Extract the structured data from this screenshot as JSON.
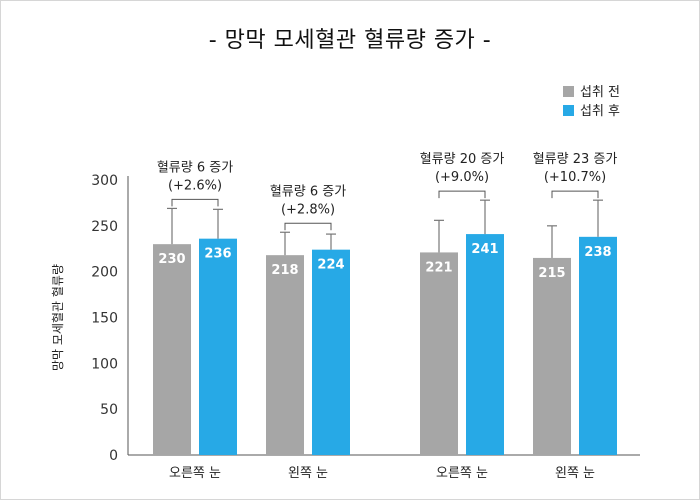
{
  "title": "- 망막 모세혈관 혈류량 증가 -",
  "chart_data": {
    "type": "bar",
    "title": "- 망막 모세혈관 혈류량 증가 -",
    "ylabel": "망막 모세혈관 혈류량",
    "xlabel": "",
    "ylim": [
      0,
      300
    ],
    "yticks": [
      0,
      50,
      100,
      150,
      200,
      250,
      300
    ],
    "categories": [
      "오른쪽 눈",
      "왼쪽 눈",
      "오른쪽 눈",
      "왼쪽 눈"
    ],
    "series": [
      {
        "name": "섭취 전",
        "color": "#a6a6a6",
        "values": [
          230,
          218,
          221,
          215
        ],
        "error_top": [
          269,
          243,
          256,
          250
        ]
      },
      {
        "name": "섭취 후",
        "color": "#27a9e6",
        "values": [
          236,
          224,
          241,
          238
        ],
        "error_top": [
          268,
          241,
          278,
          278
        ]
      }
    ],
    "annotations": [
      {
        "category_index": 0,
        "line1": "혈류량 6 증가",
        "line2": "(+2.6%)"
      },
      {
        "category_index": 1,
        "line1": "혈류량 6 증가",
        "line2": "(+2.8%)"
      },
      {
        "category_index": 2,
        "line1": "혈류량 20 증가",
        "line2": "(+9.0%)"
      },
      {
        "category_index": 3,
        "line1": "혈류량 23 증가",
        "line2": "(+10.7%)"
      }
    ],
    "legend_position": "top-right",
    "grid": false
  }
}
